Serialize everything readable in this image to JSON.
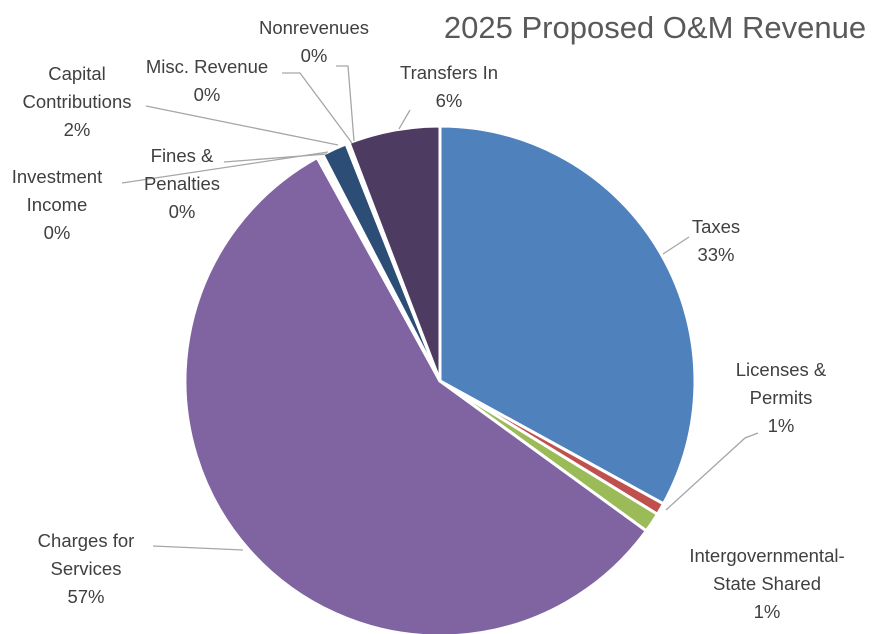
{
  "chart_data": {
    "type": "pie",
    "title": "2025 Proposed O&M Revenue",
    "slices": [
      {
        "label": [
          "Taxes"
        ],
        "pct_label": "33%",
        "value": 33.0,
        "color": "#4F81BD"
      },
      {
        "label": [
          "Licenses &",
          "Permits"
        ],
        "pct_label": "1%",
        "value": 0.75,
        "color": "#C0504D"
      },
      {
        "label": [
          "Intergovernmental-",
          "State Shared"
        ],
        "pct_label": "1%",
        "value": 1.25,
        "color": "#9BBB59"
      },
      {
        "label": [
          "Charges for",
          "Services"
        ],
        "pct_label": "57%",
        "value": 57.0,
        "color": "#8064A2"
      },
      {
        "label": [
          "Investment",
          "Income"
        ],
        "pct_label": "0%",
        "value": 0.2,
        "color": "#4BACC6"
      },
      {
        "label": [
          "Fines &",
          "Penalties"
        ],
        "pct_label": "0%",
        "value": 0.2,
        "color": "#F79646"
      },
      {
        "label": [
          "Capital",
          "Contributions"
        ],
        "pct_label": "2%",
        "value": 1.6,
        "color": "#2C4D75"
      },
      {
        "label": [
          "Misc. Revenue"
        ],
        "pct_label": "0%",
        "value": 0.1,
        "color": "#772C2A"
      },
      {
        "label": [
          "Nonrevenues"
        ],
        "pct_label": "0%",
        "value": 0.1,
        "color": "#5F7530"
      },
      {
        "label": [
          "Transfers In"
        ],
        "pct_label": "6%",
        "value": 5.8,
        "color": "#4D3B62"
      }
    ]
  }
}
